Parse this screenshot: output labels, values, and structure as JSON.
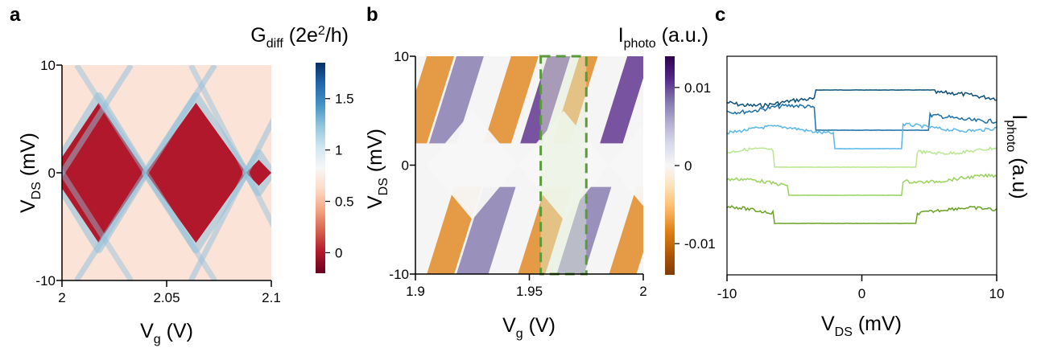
{
  "figure": {
    "panel_labels": [
      "a",
      "b",
      "c"
    ]
  },
  "chart_data": [
    {
      "panel": "a",
      "type": "heatmap",
      "xlabel": {
        "main": "V",
        "sub": "g",
        "unit": " (V)"
      },
      "ylabel": {
        "main": "V",
        "sub": "DS",
        "unit": " (mV)"
      },
      "colorbar_label": {
        "main": "G",
        "sub": "diff",
        "unit": " (2e",
        "sup": "2",
        "tail": "/h)"
      },
      "xlim": [
        2.0,
        2.1
      ],
      "ylim": [
        -10,
        10
      ],
      "x_ticks": [
        2.0,
        2.05,
        2.1
      ],
      "x_tick_labels": [
        "2",
        "2.05",
        "2.1"
      ],
      "y_ticks": [
        -10,
        0,
        10
      ],
      "y_tick_labels": [
        "-10",
        "0",
        "10"
      ],
      "colorbar_range": [
        -0.2,
        1.85
      ],
      "colorbar_ticks": [
        0,
        0.5,
        1,
        1.5
      ],
      "colorbar_tick_labels": [
        "0",
        "0.5",
        "1",
        "1.5"
      ],
      "colormap": [
        "#67001f",
        "#b2182b",
        "#d6604d",
        "#f4a582",
        "#fddbc7",
        "#f7f7f7",
        "#d1e5f0",
        "#92c5de",
        "#4393c3",
        "#2166ac",
        "#053061"
      ],
      "blockade_color": "#b2182b",
      "background_color": "#fbe3d8",
      "edge_color": "#8fc1dd",
      "diamonds": [
        {
          "left": 1.995,
          "right": 2.04,
          "degeneracy_left": 2.0,
          "degeneracy_right": 2.04,
          "height": 6.5
        },
        {
          "left": 2.04,
          "right": 2.088,
          "degeneracy_left": 2.04,
          "degeneracy_right": 2.088,
          "height": 6.5
        },
        {
          "left": 2.088,
          "right": 2.1,
          "degeneracy_left": 2.088,
          "degeneracy_right": 2.1,
          "height": 1.2
        }
      ]
    },
    {
      "panel": "b",
      "type": "heatmap",
      "xlabel": {
        "main": "V",
        "sub": "g",
        "unit": " (V)"
      },
      "ylabel": {
        "main": "V",
        "sub": "DS",
        "unit": " (mV)"
      },
      "colorbar_label": {
        "main": "I",
        "sub": "photo",
        "unit": " (a.u.)"
      },
      "xlim": [
        1.9,
        2.0
      ],
      "ylim": [
        -10,
        10
      ],
      "x_ticks": [
        1.9,
        1.95,
        2.0
      ],
      "x_tick_labels": [
        "1.9",
        "1.95",
        "2"
      ],
      "y_ticks": [
        -10,
        0,
        10
      ],
      "y_tick_labels": [
        "-10",
        "0",
        "10"
      ],
      "colorbar_range": [
        -0.014,
        0.014
      ],
      "colorbar_ticks": [
        -0.01,
        0,
        0.01
      ],
      "colorbar_tick_labels": [
        "-0.01",
        "0",
        "0.01"
      ],
      "colormap": [
        "#7f3b08",
        "#b35806",
        "#e08214",
        "#fdb863",
        "#fee0b6",
        "#f7f7f7",
        "#d8daeb",
        "#b2abd2",
        "#8073ac",
        "#542788",
        "#2d004b"
      ],
      "highlight_window": {
        "x": [
          1.955,
          1.975
        ],
        "y": [
          -10,
          10
        ],
        "color": "#5a9a3a",
        "fill": "#e3f1d5"
      },
      "degeneracy_points": [
        1.925,
        1.965,
        2.005
      ]
    },
    {
      "panel": "c",
      "type": "line",
      "xlabel": {
        "main": "V",
        "sub": "DS",
        "unit": " (mV)"
      },
      "ylabel": {
        "main": "I",
        "sub": "photo",
        "unit": " (a.u)"
      },
      "xlim": [
        -10,
        10
      ],
      "x_ticks": [
        -10,
        0,
        10
      ],
      "x_tick_labels": [
        "-10",
        "0",
        "10"
      ],
      "series": [
        {
          "color": "#0d4f78",
          "base": 72,
          "plateau_x": [
            -3.5,
            5.5
          ],
          "plateau": 0,
          "left": 95,
          "right": 68,
          "noise": 2.5
        },
        {
          "color": "#1b6ea6",
          "base": 68,
          "plateau_x": [
            -3.5,
            5.0
          ],
          "plateau": 0,
          "left": 48,
          "right": 86,
          "noise": 2.5
        },
        {
          "color": "#5ab7e8",
          "base": 97,
          "plateau_x": [
            -2.0,
            3.0
          ],
          "plateau": 0,
          "left": 52,
          "right": 42,
          "noise": 2.0
        },
        {
          "color": "#b9e68f",
          "base": 90,
          "plateau_x": [
            -6.5,
            4.0
          ],
          "plateau": 0,
          "left": 68,
          "right": 59,
          "noise": 2.0
        },
        {
          "color": "#99d35e",
          "base": 82,
          "plateau_x": [
            -5.5,
            3.0
          ],
          "plateau": 0,
          "left": 76,
          "right": 62,
          "noise": 2.0
        },
        {
          "color": "#6aa226",
          "base": 90,
          "plateau_x": [
            -6.5,
            4.0
          ],
          "plateau": 0,
          "left": 72,
          "right": 79,
          "noise": 2.0
        }
      ]
    }
  ]
}
